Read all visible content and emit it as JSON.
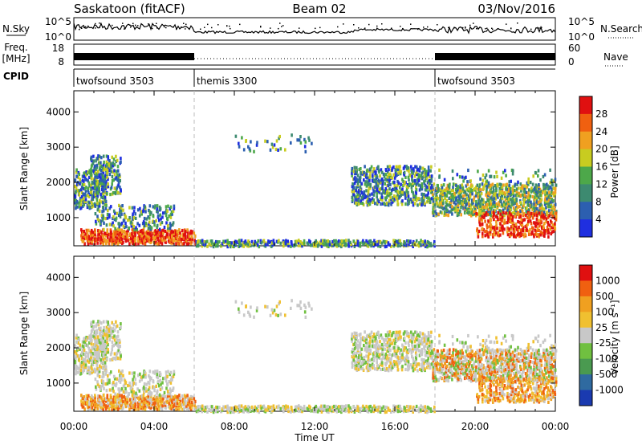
{
  "header": {
    "title": "Saskatoon (fitACF)",
    "beam": "Beam 02",
    "date": "03/Nov/2016"
  },
  "panels": {
    "nsky_label": "N.Sky",
    "nsearch_label": "N.Search",
    "freq_label_1": "Freq.",
    "freq_label_2": "[MHz]",
    "nave_label": "Nave",
    "cpid_label": "CPID",
    "nsky_ticks": [
      "10^5",
      "10^0"
    ],
    "nsky_right_ticks": [
      "10^5",
      "10^0"
    ],
    "freq_ticks": [
      "18",
      "8"
    ],
    "nave_ticks": [
      "60",
      "0"
    ]
  },
  "cpid_segments": [
    {
      "label": "twofsound 3503",
      "start_h": 0,
      "end_h": 6
    },
    {
      "label": "themis 3300",
      "start_h": 6,
      "end_h": 18
    },
    {
      "label": "twofsound 3503",
      "start_h": 18,
      "end_h": 24
    }
  ],
  "chart_data": [
    {
      "type": "heatmap",
      "name": "power-panel",
      "xlabel": "",
      "ylabel": "Slant Range [km]",
      "xlim": [
        0,
        24
      ],
      "ylim": [
        200,
        4600
      ],
      "yticks": [
        1000,
        2000,
        3000,
        4000
      ],
      "colorbar": {
        "label": "Power [dB]",
        "ticks": [
          "4",
          "8",
          "12",
          "16",
          "20",
          "24",
          "28"
        ],
        "colors": [
          "#1f2fe0",
          "#2c5fb0",
          "#3d8a70",
          "#4da84a",
          "#c8cc20",
          "#f0a020",
          "#f06010",
          "#e01010"
        ]
      }
    },
    {
      "type": "heatmap",
      "name": "velocity-panel",
      "xlabel": "Time UT",
      "ylabel": "Slant Range [km]",
      "xlim": [
        0,
        24
      ],
      "ylim": [
        200,
        4600
      ],
      "yticks": [
        1000,
        2000,
        3000,
        4000
      ],
      "xticks": [
        "00:00",
        "04:00",
        "08:00",
        "12:00",
        "16:00",
        "20:00",
        "00:00"
      ],
      "colorbar": {
        "label": "Velocity [m s⁻¹]",
        "ticks": [
          "1000",
          "500",
          "100",
          "25",
          "-25",
          "-100",
          "-500",
          "-1000"
        ],
        "colors": [
          "#1a3ab0",
          "#2f6aa0",
          "#4a9a50",
          "#70c040",
          "#c8c8c8",
          "#f0c030",
          "#f0a020",
          "#f06010",
          "#e01010"
        ]
      }
    }
  ]
}
